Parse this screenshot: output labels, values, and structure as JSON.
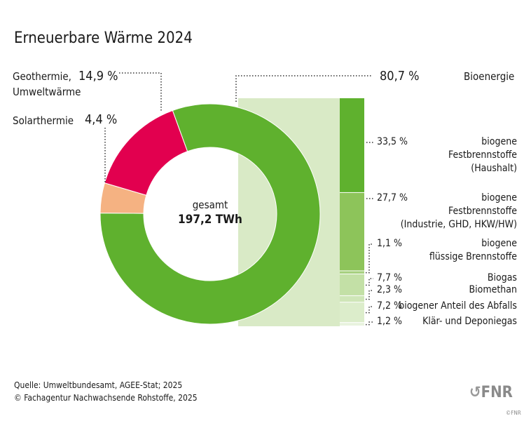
{
  "title": "Erneuerbare Wärme 2024",
  "chart_data": {
    "type": "pie",
    "title": "Erneuerbare Wärme 2024",
    "center_label": "gesamt",
    "center_value": "197,2 TWh",
    "slices": [
      {
        "name": "Bioenergie",
        "value": 80.7,
        "label": "80,7 %",
        "color": "#5fb12e"
      },
      {
        "name": "Solarthermie",
        "value": 4.4,
        "label": "4,4 %",
        "color": "#f5b282"
      },
      {
        "name": "Geothermie, Umweltwärme",
        "name_line1": "Geothermie,",
        "name_line2": "Umweltwärme",
        "value": 14.9,
        "label": "14,9 %",
        "color": "#e2004f"
      }
    ],
    "breakdown": {
      "parent": "Bioenergie",
      "items": [
        {
          "lines": [
            "biogene",
            "Festbrennstoffe",
            "(Haushalt)"
          ],
          "value": 33.5,
          "label": "33,5 %",
          "color": "#5fb12e"
        },
        {
          "lines": [
            "biogene",
            "Festbrennstoffe",
            "(Industrie, GHD, HKW/HW)"
          ],
          "value": 27.7,
          "label": "27,7 %",
          "color": "#8dc45a"
        },
        {
          "lines": [
            "biogene",
            "flüssige Brennstoffe"
          ],
          "value": 1.1,
          "label": "1,1 %",
          "color": "#a6d07e"
        },
        {
          "lines": [
            "Biogas"
          ],
          "value": 7.7,
          "label": "7,7 %",
          "color": "#c3e0a6"
        },
        {
          "lines": [
            "Biomethan"
          ],
          "value": 2.3,
          "label": "2,3 %",
          "color": "#cfe6b8"
        },
        {
          "lines": [
            "biogener Anteil des Abfalls"
          ],
          "value": 7.2,
          "label": "7,2 %",
          "color": "#dcedcb"
        },
        {
          "lines": [
            "Klär- und Deponiegas"
          ],
          "value": 1.2,
          "label": "1,2 %",
          "color": "#e8f3de"
        }
      ]
    }
  },
  "footer": {
    "source": "Quelle: Umweltbundesamt, AGEE-Stat; 2025",
    "copyright": "© Fachagentur Nachwachsende Rohstoffe, 2025",
    "logo": "FNR",
    "small_logo": "©FNR"
  }
}
